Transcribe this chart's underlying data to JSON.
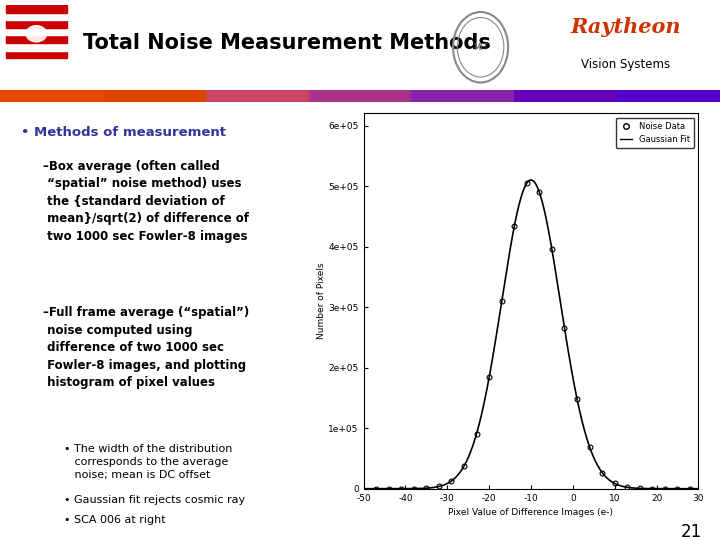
{
  "title": "Total Noise Measurement Methods",
  "background_color": "#ffffff",
  "slide_number": "21",
  "bullet_header_color": "#333399",
  "bullet_header": "Methods of measurement",
  "plot": {
    "mu": -10,
    "sigma": 7,
    "amplitude": 510000,
    "x_min": -50,
    "x_max": 30,
    "y_min": 0,
    "y_max": 620000,
    "xlabel": "Pixel Value of Difference Images (e-)",
    "ylabel": "Number of Pixels",
    "legend_data": "Noise Data",
    "legend_fit": "Gaussian Fit",
    "data_points_x": [
      -47,
      -44,
      -41,
      -38,
      -35,
      -32,
      -29,
      -26,
      -23,
      -20,
      -17,
      -14,
      -11,
      -8,
      -5,
      -2,
      1,
      4,
      7,
      10,
      13,
      16,
      19,
      22,
      25,
      28
    ],
    "yticks": [
      0,
      100000,
      200000,
      300000,
      400000,
      500000,
      600000
    ],
    "ytick_labels": [
      "0",
      "1e+05",
      "2e+05",
      "3e+05",
      "4e+05",
      "5e+05",
      "6e+05"
    ],
    "xticks": [
      -50,
      -40,
      -30,
      -20,
      -10,
      0,
      10,
      20,
      30
    ]
  },
  "raytheon_color": "#cc3300",
  "bar_colors": [
    "#e84c00",
    "#e85a00",
    "#cc6633",
    "#aa5577",
    "#883399",
    "#6600aa",
    "#440088"
  ],
  "dash_items": [
    "–Box average (often called\n “spatial” noise method) uses\n the {standard deviation of\n mean}/sqrt(2) of difference of\n two 1000 sec Fowler-8 images",
    "–Full frame average (“spatial”)\n noise computed using\n difference of two 1000 sec\n Fowler-8 images, and plotting\n histogram of pixel values"
  ],
  "sub_items": [
    "The width of the distribution\n corresponds to the average\n noise; mean is DC offset",
    "Gaussian fit rejects cosmic ray",
    "SCA 006 at right"
  ]
}
